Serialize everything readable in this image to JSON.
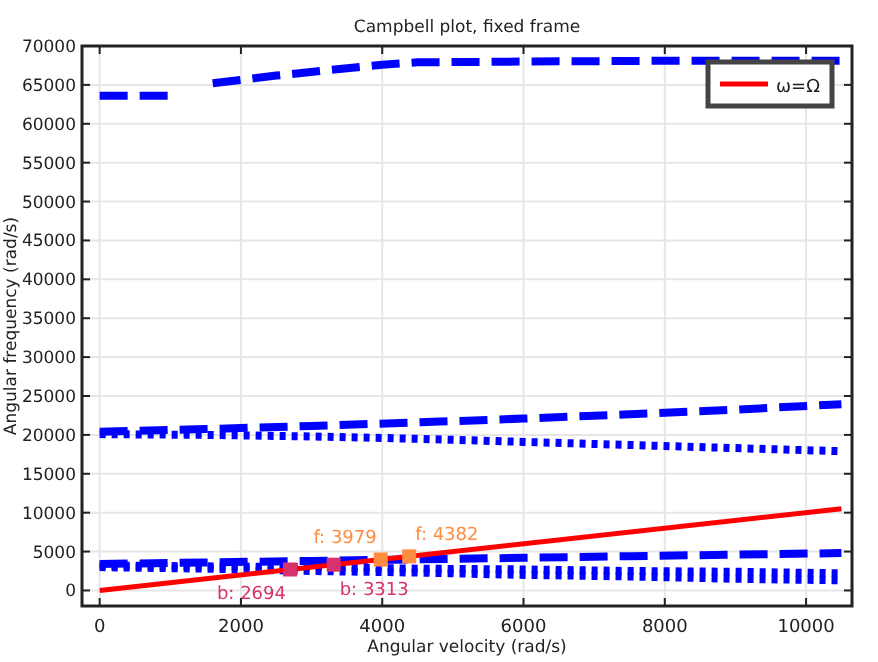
{
  "chart_data": {
    "type": "line",
    "title": "Campbell plot, fixed frame",
    "xlabel": "Angular velocity (rad/s)",
    "ylabel": "Angular frequency (rad/s)",
    "xlim": [
      -250,
      10650
    ],
    "ylim": [
      -2000,
      70000
    ],
    "xticks": [
      0,
      2000,
      4000,
      6000,
      8000,
      10000
    ],
    "yticks": [
      0,
      5000,
      10000,
      15000,
      20000,
      25000,
      30000,
      35000,
      40000,
      45000,
      50000,
      55000,
      60000,
      65000,
      70000
    ],
    "grid": true,
    "legend": "top right",
    "series": [
      {
        "color": "#0000ff",
        "line_style": "dashed",
        "x": [
          0,
          1100,
          1350,
          1600,
          2500,
          4000,
          4500,
          6000,
          8000,
          10500
        ],
        "values": [
          63600,
          63600,
          null,
          65200,
          66200,
          67600,
          67900,
          68000,
          68100,
          68100
        ]
      },
      {
        "color": "#0000ff",
        "line_style": "dashed",
        "x": [
          0,
          1500,
          3000,
          4500,
          6000,
          7500,
          9000,
          10500
        ],
        "values": [
          20400,
          20750,
          21150,
          21600,
          22100,
          22650,
          23250,
          23950
        ]
      },
      {
        "color": "#0000ff",
        "line_style": "dotted",
        "x": [
          0,
          1500,
          3000,
          4500,
          6000,
          7500,
          9000,
          10500
        ],
        "values": [
          20100,
          20000,
          19800,
          19500,
          19100,
          18700,
          18300,
          17900
        ]
      },
      {
        "color": "#0000ff",
        "line_style": "dashed",
        "x": [
          0,
          1500,
          3000,
          4500,
          6000,
          7500,
          9000,
          10500
        ],
        "values": [
          3400,
          3600,
          3800,
          4000,
          4200,
          4400,
          4600,
          4800
        ]
      },
      {
        "color": "#0000ff",
        "line_style": "dotted",
        "x": [
          0,
          1500,
          3000,
          4500,
          6000,
          7500,
          9000,
          10500
        ],
        "values": [
          3200,
          3100,
          3000,
          2800,
          2700,
          2500,
          2400,
          2200
        ]
      },
      {
        "color": "#0000ff",
        "line_style": "dotted",
        "x": [
          0,
          1500,
          3000,
          4500,
          6000,
          7500,
          9000,
          10500
        ],
        "values": [
          3000,
          2800,
          2500,
          2300,
          2000,
          1800,
          1500,
          1300
        ]
      },
      {
        "name": "ω=Ω",
        "color": "#ff0000",
        "line_style": "solid",
        "x": [
          0,
          10500
        ],
        "values": [
          0,
          10500
        ]
      },
      {
        "type": "scatter",
        "marker": "square",
        "color": "#d6336c",
        "x": [
          2694,
          3313
        ],
        "values": [
          2694,
          3313
        ],
        "value_labels": [
          "b: 2694",
          "b: 3313"
        ]
      },
      {
        "type": "scatter",
        "marker": "square",
        "color": "#ff8c40",
        "x": [
          3979,
          4382
        ],
        "values": [
          3979,
          4382
        ],
        "value_labels": [
          "f: 3979",
          "f: 4382"
        ]
      }
    ]
  }
}
